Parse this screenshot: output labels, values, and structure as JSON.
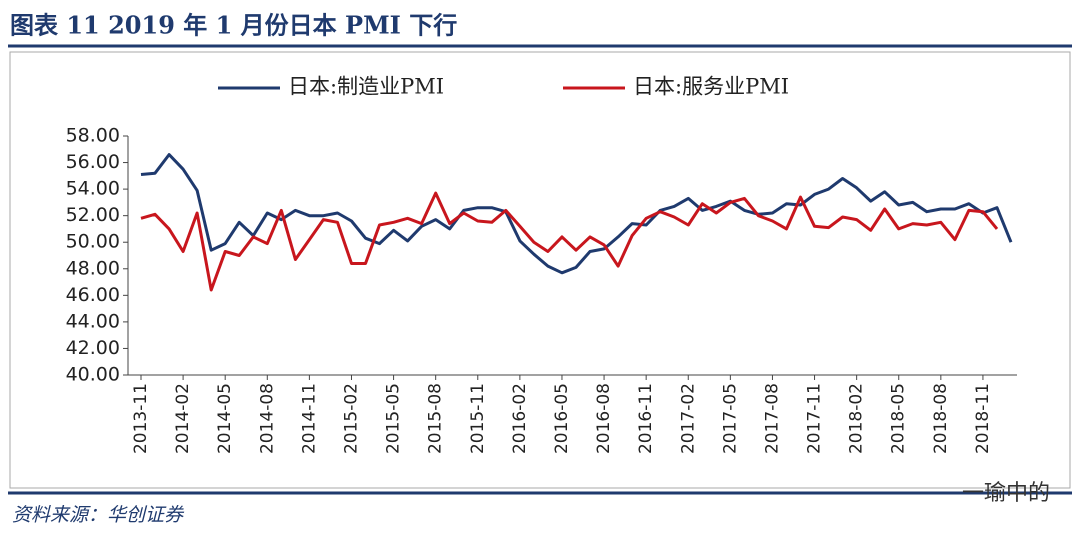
{
  "chart_data": {
    "type": "line",
    "title": "图表 11   2019 年 1 月份日本 PMI 下行",
    "source": "资料来源：华创证券",
    "watermark": "一瑜中的",
    "categories": [
      "2013-11",
      null,
      null,
      "2014-02",
      null,
      null,
      "2014-05",
      null,
      null,
      "2014-08",
      null,
      null,
      "2014-11",
      null,
      null,
      "2015-02",
      null,
      null,
      "2015-05",
      null,
      null,
      "2015-08",
      null,
      null,
      "2015-11",
      null,
      null,
      "2016-02",
      null,
      null,
      "2016-05",
      null,
      null,
      "2016-08",
      null,
      null,
      "2016-11",
      null,
      null,
      "2017-02",
      null,
      null,
      "2017-05",
      null,
      null,
      "2017-08",
      null,
      null,
      "2017-11",
      null,
      null,
      "2018-02",
      null,
      null,
      "2018-05",
      null,
      null,
      "2018-08",
      null,
      null,
      "2018-11",
      null,
      null
    ],
    "series": [
      {
        "name": "日本:制造业PMI",
        "color": "#1f3a6e",
        "values": [
          55.1,
          55.2,
          56.6,
          55.5,
          53.9,
          49.4,
          49.9,
          51.5,
          50.5,
          52.2,
          51.7,
          52.4,
          52.0,
          52.0,
          52.2,
          51.6,
          50.3,
          49.9,
          50.9,
          50.1,
          51.2,
          51.7,
          51.0,
          52.4,
          52.6,
          52.6,
          52.3,
          50.1,
          49.1,
          48.2,
          47.7,
          48.1,
          49.3,
          49.5,
          50.4,
          51.4,
          51.3,
          52.4,
          52.7,
          53.3,
          52.4,
          52.7,
          53.1,
          52.4,
          52.1,
          52.2,
          52.9,
          52.8,
          53.6,
          54.0,
          54.8,
          54.1,
          53.1,
          53.8,
          52.8,
          53.0,
          52.3,
          52.5,
          52.5,
          52.9,
          52.2,
          52.6,
          50.0
        ]
      },
      {
        "name": "日本:服务业PMI",
        "color": "#c8161d",
        "values": [
          51.8,
          52.1,
          51.0,
          49.3,
          52.2,
          46.4,
          49.3,
          49.0,
          50.4,
          49.9,
          52.4,
          48.7,
          50.2,
          51.7,
          51.5,
          48.4,
          48.4,
          51.3,
          51.5,
          51.8,
          51.4,
          53.7,
          51.4,
          52.2,
          51.6,
          51.5,
          52.4,
          51.2,
          50.0,
          49.3,
          50.4,
          49.4,
          50.4,
          49.8,
          48.2,
          50.5,
          51.8,
          52.3,
          51.9,
          51.3,
          52.9,
          52.2,
          53.0,
          53.3,
          52.0,
          51.6,
          51.0,
          53.4,
          51.2,
          51.1,
          51.9,
          51.7,
          50.9,
          52.5,
          51.0,
          51.4,
          51.3,
          51.5,
          50.2,
          52.4,
          52.3,
          51.0,
          null
        ]
      }
    ],
    "ylim": [
      40,
      58
    ],
    "yticks": [
      {
        "value": 40,
        "label": "40.00"
      },
      {
        "value": 42,
        "label": "42.00"
      },
      {
        "value": 44,
        "label": "44.00"
      },
      {
        "value": 46,
        "label": "46.00"
      },
      {
        "value": 48,
        "label": "48.00"
      },
      {
        "value": 50,
        "label": "50.00"
      },
      {
        "value": 52,
        "label": "52.00"
      },
      {
        "value": 54,
        "label": "54.00"
      },
      {
        "value": 56,
        "label": "56.00"
      },
      {
        "value": 58,
        "label": "58.00"
      }
    ],
    "grid": false
  }
}
